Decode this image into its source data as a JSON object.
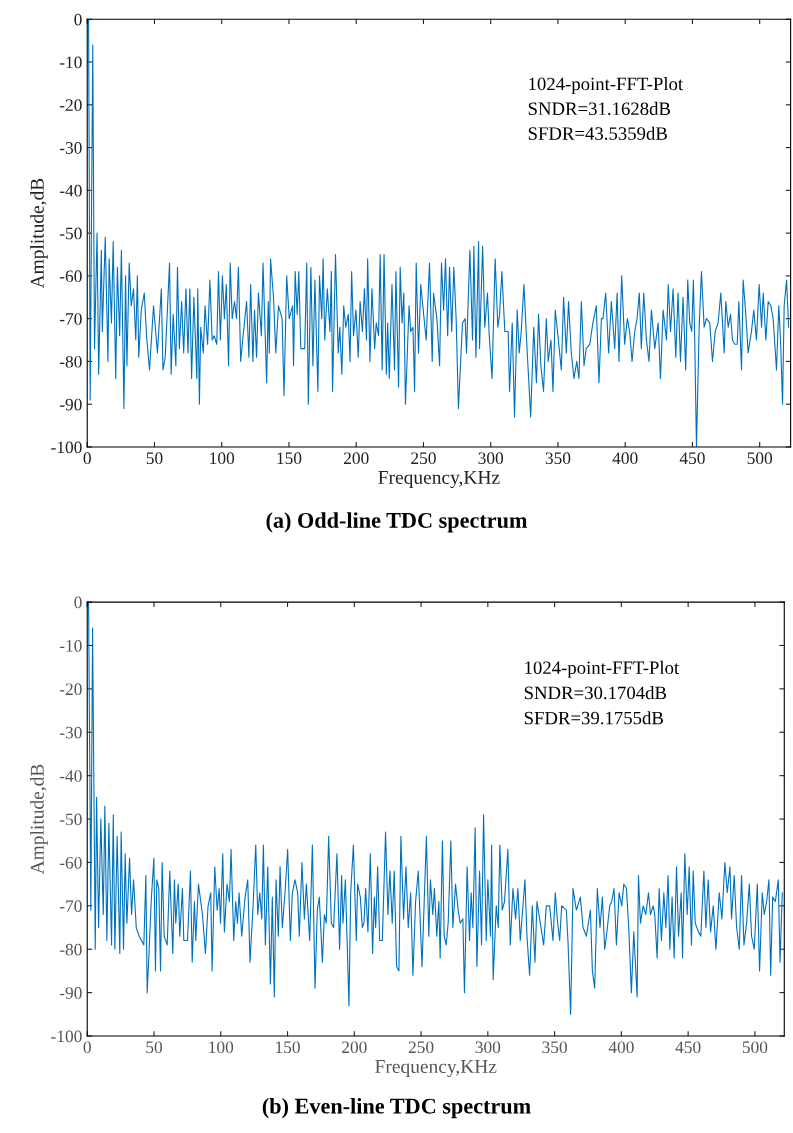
{
  "chart_data": [
    {
      "type": "line",
      "title": "(a) Odd-line TDC spectrum",
      "xlabel": "Frequency,KHz",
      "ylabel": "Amplitude,dB",
      "annotations": [
        "1024-point-FFT-Plot",
        "SNDR=31.1628dB",
        "SFDR=43.5359dB"
      ],
      "xlim": [
        0,
        523
      ],
      "ylim": [
        -100,
        0
      ],
      "xticks": [
        0,
        50,
        100,
        150,
        200,
        250,
        300,
        350,
        400,
        450,
        500
      ],
      "yticks": [
        -100,
        -90,
        -80,
        -70,
        -60,
        -50,
        -40,
        -30,
        -20,
        -10,
        0
      ],
      "grid": false,
      "legend": false,
      "series": [
        {
          "color": "#0072bd",
          "x": [
            1,
            2.2,
            4.1,
            5.4,
            7.3,
            8.5,
            10.5,
            11.2,
            13.4,
            15.4,
            16.3,
            18,
            19.3,
            21.2,
            22.4,
            24.1,
            25.4,
            27.3,
            28.5,
            29.5,
            31.2,
            32.7,
            34.4,
            36.1,
            37.3,
            38.3,
            40.2,
            42.4,
            44.1,
            46.3,
            49.3,
            52.2,
            55.1,
            56.3,
            58,
            61.2,
            62.4,
            63.9,
            65.9,
            67.1,
            68.5,
            70.2,
            71.7,
            73.4,
            74.9,
            76.3,
            77.6,
            79.3,
            81.5,
            82.2,
            83.4,
            84.4,
            86.3,
            87.6,
            89.5,
            91.2,
            92.9,
            94.4,
            96.3,
            97.6,
            99,
            100.5,
            102,
            103.4,
            105.1,
            106.3,
            107.8,
            109.5,
            111,
            112.4,
            114.1,
            115.6,
            118.5,
            120.2,
            121.5,
            123.2,
            124.4,
            125.9,
            127.3,
            129.5,
            130.7,
            133.4,
            134.6,
            135.4,
            136.3,
            138.5,
            140.2,
            142.2,
            144.9,
            146.3,
            148.3,
            150.2,
            152.7,
            153.4,
            154.6,
            156.1,
            157.3,
            158.8,
            161.7,
            163.2,
            164.4,
            166.3,
            167.8,
            169.3,
            171.5,
            172.7,
            174.4,
            175.4,
            176.6,
            178.5,
            180.5,
            181.5,
            182.4,
            184.6,
            186.6,
            187.8,
            189.3,
            190.7,
            192.2,
            194.1,
            195.4,
            196.6,
            198,
            199.8,
            201.5,
            202.9,
            204.6,
            206.1,
            207.6,
            208.5,
            210.2,
            211.7,
            213.7,
            214.9,
            216.6,
            217.8,
            219.3,
            220.7,
            222.4,
            223.4,
            224.6,
            226.6,
            228.5,
            229.5,
            231.5,
            232.7,
            234.1,
            235.4,
            236.6,
            239.3,
            240.5,
            242.2,
            243.4,
            244.6,
            246.3,
            248,
            252,
            254.5,
            256.5,
            257.5,
            260,
            262,
            263.4,
            265,
            266.4,
            268,
            269.4,
            271,
            272.6,
            274.3,
            276,
            279,
            281,
            282,
            284.5,
            286.5,
            287.5,
            289,
            291,
            291.7,
            294,
            295.6,
            297.6,
            298.9,
            301,
            303.3,
            305.3,
            306.6,
            308.3,
            310.5,
            313,
            314,
            316,
            317.7,
            319.7,
            321.2,
            322.7,
            324.7,
            327,
            329.7,
            332,
            334,
            335.6,
            337.3,
            339.3,
            341.3,
            342.8,
            344.8,
            346.3,
            348,
            350,
            352.5,
            354.2,
            356.2,
            357.9,
            359.9,
            361.9,
            364,
            365.6,
            367.4,
            369.4,
            371,
            373.6,
            376,
            378.5,
            380.5,
            382.3,
            383.5,
            385.5,
            387.7,
            389.7,
            392.2,
            394,
            395.4,
            397.4,
            399.6,
            401.6,
            403.3,
            405.1,
            407.1,
            408.8,
            410.5,
            412,
            413.8,
            415.8,
            417.7,
            419.5,
            422,
            424.5,
            426.2,
            428.2,
            430.7,
            432,
            433.7,
            435.6,
            437.6,
            439.3,
            441.1,
            443,
            445,
            446.5,
            448,
            449.5,
            450.7,
            451.7,
            453,
            455,
            456.7,
            458.7,
            460.4,
            462.9,
            464.9,
            466.9,
            469.1,
            471.1,
            473.6,
            474.8,
            476.6,
            478.3,
            479.8,
            481.5,
            483.3,
            484.5,
            486.5,
            487.7,
            489.7,
            491.4,
            493.9,
            495.6,
            497.6,
            499.6,
            501.4,
            502.6,
            504.6,
            506.3,
            508.3,
            510,
            512.5,
            514.2,
            515.5,
            517,
            518.2,
            520,
            521.5
          ],
          "values": [
            0,
            -89,
            -6,
            -77,
            -50,
            -83,
            -54,
            -73,
            -51,
            -80,
            -56,
            -71,
            -52,
            -84,
            -58,
            -74,
            -54,
            -91,
            -60,
            -81,
            -57,
            -67,
            -63,
            -75,
            -60,
            -79,
            -68,
            -64,
            -74,
            -82,
            -67,
            -78,
            -63,
            -82,
            -79,
            -57,
            -83,
            -69,
            -81,
            -58,
            -77,
            -66,
            -78,
            -63,
            -78,
            -63,
            -84,
            -65,
            -84,
            -63,
            -90,
            -72,
            -78,
            -67,
            -76,
            -61,
            -75,
            -74,
            -76,
            -59,
            -75,
            -60,
            -70,
            -62,
            -81,
            -57,
            -70,
            -66,
            -70,
            -58,
            -80,
            -75,
            -66,
            -79,
            -62,
            -80,
            -68,
            -79,
            -64,
            -74,
            -57,
            -85,
            -66,
            -78,
            -56,
            -65,
            -78,
            -67,
            -70,
            -88,
            -60,
            -70,
            -67,
            -81,
            -59,
            -69,
            -59,
            -77,
            -77,
            -57,
            -90,
            -58,
            -81,
            -61,
            -87,
            -60,
            -70,
            -56,
            -75,
            -63,
            -73,
            -59,
            -87,
            -55,
            -78,
            -72,
            -83,
            -67,
            -72,
            -69,
            -80,
            -59,
            -74,
            -68,
            -79,
            -66,
            -73,
            -63,
            -75,
            -56,
            -80,
            -63,
            -77,
            -71,
            -74,
            -55,
            -82,
            -55,
            -83,
            -71,
            -84,
            -62,
            -82,
            -59,
            -86,
            -58,
            -71,
            -64,
            -90,
            -67,
            -73,
            -72,
            -87,
            -57,
            -78,
            -62,
            -75,
            -57,
            -80,
            -64,
            -70,
            -81,
            -57,
            -68,
            -56,
            -74,
            -58,
            -73,
            -58,
            -70,
            -91,
            -71,
            -70,
            -78,
            -54,
            -75,
            -53,
            -79,
            -52,
            -77,
            -53,
            -72,
            -64,
            -74,
            -84,
            -56,
            -72,
            -69,
            -59,
            -73,
            -73,
            -87,
            -71,
            -93,
            -68,
            -78,
            -73,
            -62,
            -77,
            -93,
            -72,
            -85,
            -69,
            -81,
            -87,
            -70,
            -80,
            -75,
            -87,
            -68,
            -74,
            -82,
            -65,
            -78,
            -66,
            -78,
            -84,
            -80,
            -84,
            -66,
            -81,
            -77,
            -76,
            -71,
            -67,
            -85,
            -70,
            -70,
            -64,
            -78,
            -66,
            -77,
            -64,
            -80,
            -60,
            -76,
            -70,
            -73,
            -80,
            -73,
            -70,
            -64,
            -77,
            -64,
            -75,
            -80,
            -68,
            -77,
            -71,
            -84,
            -68,
            -75,
            -62,
            -73,
            -63,
            -79,
            -64,
            -80,
            -65,
            -82,
            -61,
            -71,
            -73,
            -61,
            -75,
            -100,
            -72,
            -59,
            -72,
            -70,
            -71,
            -80,
            -73,
            -71,
            -64,
            -78,
            -66,
            -72,
            -69,
            -75,
            -76,
            -76,
            -66,
            -82,
            -61,
            -69,
            -78,
            -73,
            -68,
            -75,
            -62,
            -72,
            -64,
            -75,
            -66,
            -67,
            -70,
            -82,
            -67,
            -75,
            -90,
            -67,
            -61,
            -72
          ]
        }
      ]
    },
    {
      "type": "line",
      "title": "(b) Even-line TDC spectrum",
      "xlabel": "Frequency,KHz",
      "ylabel": "Amplitude,dB",
      "annotations": [
        "1024-point-FFT-Plot",
        "SNDR=30.1704dB",
        "SFDR=39.1755dB"
      ],
      "xlim": [
        0,
        522
      ],
      "ylim": [
        -100,
        0
      ],
      "xticks": [
        0,
        50,
        100,
        150,
        200,
        250,
        300,
        350,
        400,
        450,
        500
      ],
      "yticks": [
        -100,
        -90,
        -80,
        -70,
        -60,
        -50,
        -40,
        -30,
        -20,
        -10,
        0
      ],
      "grid": false,
      "legend": false,
      "series": [
        {
          "color": "#0072bd",
          "x": [
            1,
            2.7,
            4,
            6,
            7,
            8.5,
            10.2,
            12,
            13.2,
            14.7,
            16.2,
            18.2,
            19.5,
            20.7,
            22.4,
            24.4,
            25.4,
            27.2,
            28.4,
            29.7,
            31.7,
            33.2,
            34.7,
            36.7,
            38.9,
            42.4,
            43.9,
            44.9,
            46.4,
            47.9,
            49.9,
            51.1,
            52.1,
            53.6,
            54.9,
            56.1,
            57.6,
            59.9,
            61.8,
            64.1,
            65.3,
            66.3,
            68.1,
            69.3,
            71.3,
            72.3,
            75.1,
            77.3,
            78.6,
            80.3,
            81.3,
            83.3,
            86.3,
            88.5,
            90.5,
            92.5,
            93.5,
            95.5,
            97.3,
            98.8,
            99.8,
            101.5,
            102.7,
            104.7,
            106.5,
            107.7,
            109.7,
            111.2,
            112.5,
            113.7,
            115.7,
            118.2,
            120.2,
            121.9,
            124.2,
            126.2,
            127.7,
            129.2,
            130.7,
            131.9,
            133.4,
            135.2,
            137.2,
            138.6,
            140.1,
            141.4,
            143.1,
            144.4,
            146.1,
            148.1,
            150.1,
            152.1,
            153.6,
            155.6,
            157.6,
            158.8,
            160.8,
            162.6,
            164.1,
            166.6,
            168.6,
            170.6,
            172.3,
            173.8,
            176.1,
            177.6,
            179,
            180.8,
            182.8,
            184.5,
            187,
            189,
            190.5,
            191.5,
            193.3,
            196,
            197.3,
            199.3,
            201.5,
            202.5,
            204.5,
            206,
            207.2,
            208.5,
            210.2,
            212,
            213.7,
            215,
            216,
            217.5,
            219,
            221,
            223.4,
            225.2,
            226.7,
            228.4,
            229.9,
            231.7,
            233.4,
            234.9,
            236.9,
            238.7,
            240.4,
            242.2,
            243.9,
            245.9,
            247.9,
            250.7,
            254,
            255.8,
            257,
            258.8,
            260,
            261.8,
            263.3,
            264.3,
            266,
            267.3,
            268.8,
            270.3,
            272.3,
            273.8,
            275.8,
            277.8,
            279.3,
            281.3,
            282.5,
            284.5,
            286.3,
            287.5,
            288.8,
            290.5,
            291.8,
            293.8,
            295.3,
            296.8,
            298.8,
            300,
            302,
            302.8,
            304,
            306.3,
            307.8,
            309,
            310.8,
            312.5,
            315,
            316.8,
            318.8,
            320.8,
            322.5,
            324.3,
            327.8,
            329.3,
            331.3,
            333.3,
            335.3,
            336.8,
            338.8,
            341.8,
            343.8,
            346.3,
            348.8,
            350.5,
            352,
            353.8,
            355.3,
            358.8,
            360,
            362,
            363.8,
            366.3,
            369.3,
            371.3,
            373.8,
            376.8,
            378.3,
            380,
            382,
            384,
            385.8,
            387.5,
            388.8,
            391.3,
            392.8,
            394.5,
            396.3,
            398.3,
            400.3,
            401.8,
            403.8,
            405.5,
            407.5,
            409.3,
            411.8,
            412.8,
            414.3,
            416.3,
            418.3,
            420.3,
            421.8,
            423.8,
            425,
            426.8,
            428.3,
            430,
            431.8,
            433.3,
            435,
            436.3,
            438,
            439.5,
            441.3,
            442.8,
            444.8,
            445.8,
            447.5,
            449.3,
            450.8,
            452.5,
            453.8,
            455.3,
            457.8,
            459.5,
            461.8,
            463.3,
            465,
            466.8,
            468.8,
            470.8,
            473.3,
            475.3,
            477.5,
            479.3,
            481.3,
            482.5,
            484.5,
            486.3,
            488.3,
            490,
            491.8,
            493.8,
            495.8,
            497.5,
            499.5,
            501.8,
            503.5,
            505.5,
            507,
            508.8,
            510.5,
            511.8,
            513.3,
            515.3,
            517.5,
            518.8,
            520.5
          ],
          "values": [
            0,
            -71,
            -6,
            -80,
            -45,
            -75,
            -50,
            -72,
            -47,
            -78,
            -51,
            -79,
            -49,
            -80,
            -54,
            -81,
            -53,
            -80,
            -58,
            -74,
            -59,
            -72,
            -64,
            -75,
            -77,
            -79,
            -63,
            -90,
            -80,
            -69,
            -59,
            -85,
            -64,
            -66,
            -85,
            -60,
            -77,
            -79,
            -62,
            -81,
            -64,
            -74,
            -65,
            -77,
            -66,
            -78,
            -78,
            -62,
            -83,
            -69,
            -78,
            -65,
            -72,
            -81,
            -70,
            -67,
            -85,
            -61,
            -71,
            -66,
            -74,
            -58,
            -76,
            -65,
            -69,
            -57,
            -78,
            -69,
            -74,
            -67,
            -77,
            -68,
            -64,
            -83,
            -70,
            -56,
            -72,
            -67,
            -73,
            -56,
            -79,
            -61,
            -88,
            -68,
            -91,
            -64,
            -77,
            -61,
            -75,
            -67,
            -57,
            -78,
            -67,
            -64,
            -67,
            -77,
            -60,
            -73,
            -65,
            -78,
            -56,
            -89,
            -71,
            -68,
            -83,
            -72,
            -74,
            -54,
            -74,
            -75,
            -58,
            -80,
            -63,
            -74,
            -64,
            -93,
            -67,
            -56,
            -78,
            -65,
            -68,
            -75,
            -74,
            -66,
            -76,
            -58,
            -81,
            -68,
            -75,
            -61,
            -78,
            -78,
            -53,
            -72,
            -62,
            -74,
            -62,
            -84,
            -85,
            -54,
            -73,
            -61,
            -75,
            -67,
            -86,
            -69,
            -62,
            -84,
            -54,
            -77,
            -64,
            -72,
            -66,
            -77,
            -69,
            -82,
            -55,
            -77,
            -79,
            -74,
            -55,
            -75,
            -65,
            -71,
            -74,
            -73,
            -90,
            -61,
            -78,
            -67,
            -75,
            -52,
            -84,
            -62,
            -79,
            -49,
            -78,
            -64,
            -77,
            -56,
            -87,
            -70,
            -75,
            -56,
            -71,
            -69,
            -57,
            -79,
            -66,
            -73,
            -66,
            -78,
            -64,
            -77,
            -86,
            -70,
            -83,
            -69,
            -73,
            -79,
            -70,
            -70,
            -78,
            -67,
            -73,
            -78,
            -70,
            -71,
            -78,
            -95,
            -66,
            -71,
            -68,
            -75,
            -77,
            -71,
            -85,
            -89,
            -66,
            -75,
            -68,
            -80,
            -77,
            -70,
            -69,
            -66,
            -79,
            -67,
            -70,
            -65,
            -66,
            -75,
            -90,
            -76,
            -91,
            -63,
            -74,
            -70,
            -72,
            -67,
            -72,
            -70,
            -72,
            -82,
            -66,
            -78,
            -67,
            -75,
            -63,
            -80,
            -68,
            -82,
            -61,
            -77,
            -67,
            -82,
            -58,
            -72,
            -61,
            -79,
            -62,
            -74,
            -76,
            -77,
            -62,
            -75,
            -64,
            -76,
            -70,
            -80,
            -67,
            -73,
            -60,
            -67,
            -61,
            -73,
            -63,
            -75,
            -80,
            -63,
            -79,
            -74,
            -65,
            -77,
            -80,
            -65,
            -85,
            -67,
            -72,
            -69,
            -64,
            -86,
            -68,
            -69,
            -64,
            -83,
            -67
          ]
        }
      ]
    }
  ]
}
